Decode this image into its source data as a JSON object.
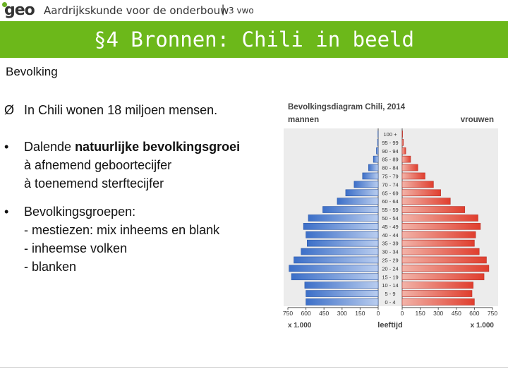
{
  "header": {
    "logo": "geo",
    "subject": "Aardrijkskunde voor de onderbouw",
    "separator": "|",
    "level": "3 vwo"
  },
  "banner": {
    "title": "§4 Bronnen: Chili in beeld"
  },
  "section": {
    "title": "Bevolking"
  },
  "bullets": [
    {
      "marker": "Ø",
      "text": "In Chili wonen 18 miljoen mensen."
    },
    {
      "marker": "•",
      "line1_prefix": "Dalende ",
      "line1_bold": "natuurlijke bevolkingsgroei",
      "line2": "à afnemend geboortecijfer",
      "line3": "à toenemend sterftecijfer"
    },
    {
      "marker": "•",
      "line1": "Bevolkingsgroepen:",
      "line2": "- mestiezen: mix inheems en blank",
      "line3": "- inheemse volken",
      "line4": "- blanken"
    }
  ],
  "colors": {
    "banner": "#6cb81a",
    "men": "#4a7fd4",
    "women": "#e0473a",
    "chart_bg": "#ececec"
  },
  "chart_data": {
    "type": "bar",
    "title": "Bevolkingsdiagram Chili, 2014",
    "left_label": "mannen",
    "right_label": "vrouwen",
    "xlabel": "leeftijd",
    "unit_left": "x 1.000",
    "unit_right": "x 1.000",
    "xlim": [
      0,
      750
    ],
    "ticks_left": [
      "750",
      "600",
      "450",
      "300",
      "150",
      "0"
    ],
    "ticks_right": [
      "0",
      "150",
      "300",
      "450",
      "600",
      "750"
    ],
    "categories": [
      "100 +",
      "95 - 99",
      "90 - 94",
      "85 - 89",
      "80 - 84",
      "75 - 79",
      "70 - 74",
      "65 - 69",
      "60 - 64",
      "55 - 59",
      "50 - 54",
      "45 - 49",
      "40 - 44",
      "35 - 39",
      "30 - 34",
      "25 - 29",
      "20 - 24",
      "15 - 19",
      "10 - 14",
      "5 - 9",
      "0 - 4"
    ],
    "series": [
      {
        "name": "mannen",
        "values": [
          2,
          5,
          15,
          40,
          80,
          130,
          200,
          270,
          340,
          460,
          580,
          620,
          600,
          590,
          640,
          700,
          740,
          720,
          610,
          600,
          600
        ]
      },
      {
        "name": "vrouwen",
        "values": [
          4,
          10,
          30,
          70,
          130,
          190,
          260,
          320,
          400,
          520,
          630,
          650,
          610,
          600,
          640,
          700,
          720,
          680,
          590,
          580,
          600
        ]
      }
    ]
  }
}
